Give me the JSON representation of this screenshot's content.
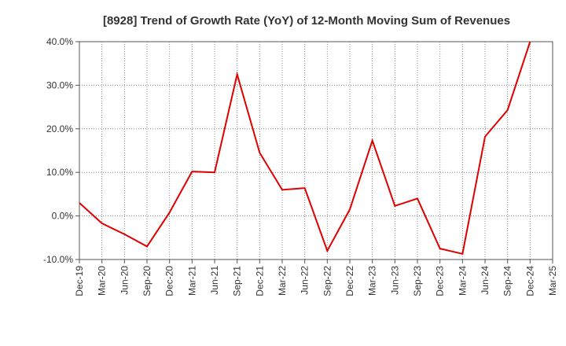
{
  "chart_data": {
    "type": "line",
    "title": "[8928]  Trend of Growth Rate (YoY) of 12-Month Moving Sum of Revenues",
    "xlabel": "",
    "ylabel": "",
    "x": [
      "Dec-19",
      "Mar-20",
      "Jun-20",
      "Sep-20",
      "Dec-20",
      "Mar-21",
      "Jun-21",
      "Sep-21",
      "Dec-21",
      "Mar-22",
      "Jun-22",
      "Sep-22",
      "Dec-22",
      "Mar-23",
      "Jun-23",
      "Sep-23",
      "Dec-23",
      "Mar-24",
      "Jun-24",
      "Sep-24",
      "Dec-24",
      "Mar-25"
    ],
    "series": [
      {
        "color": "#e00000",
        "values": [
          3.0,
          -1.7,
          -4.2,
          -7.0,
          0.8,
          10.2,
          10.0,
          32.5,
          14.5,
          6.0,
          6.4,
          -8.0,
          1.5,
          17.3,
          2.3,
          4.0,
          -7.5,
          -8.7,
          18.2,
          24.3,
          40.0,
          null
        ]
      }
    ],
    "ylim": [
      -10,
      40
    ],
    "yticks": [
      -10,
      0,
      10,
      20,
      30,
      40
    ],
    "ytick_labels": [
      "-10.0%",
      "0.0%",
      "10.0%",
      "20.0%",
      "30.0%",
      "40.0%"
    ],
    "grid": true,
    "grid_style": "dotted",
    "legend": "none"
  }
}
